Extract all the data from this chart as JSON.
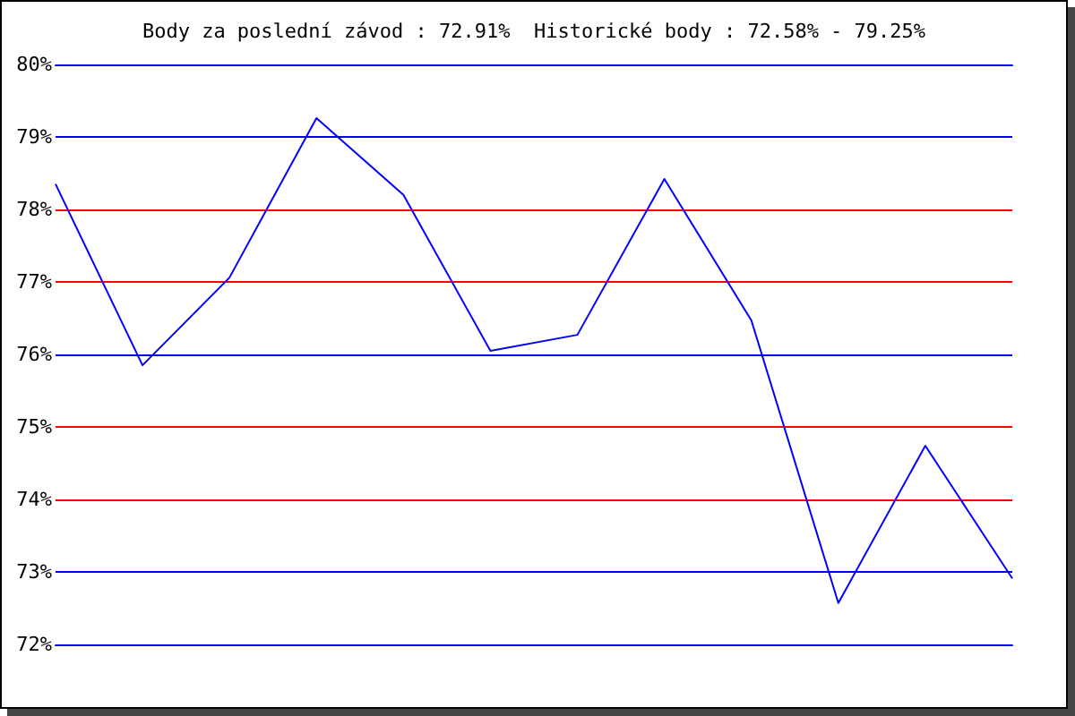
{
  "chart_data": {
    "type": "line",
    "title": "Body za poslední závod : 72.91%  Historické body : 72.58% - 79.25%",
    "categories": [
      null,
      null,
      null,
      null,
      null,
      null,
      null,
      null,
      null,
      null,
      null,
      null
    ],
    "series": [
      {
        "color": "#0000ff",
        "values": [
          78.35,
          75.85,
          77.06,
          79.26,
          78.2,
          76.05,
          76.27,
          78.42,
          76.47,
          72.57,
          74.74,
          72.91
        ]
      }
    ],
    "ylim": [
      72,
      80
    ],
    "yticks": [
      {
        "value": 72,
        "label": "72%"
      },
      {
        "value": 73,
        "label": "73%"
      },
      {
        "value": 74,
        "label": "74%"
      },
      {
        "value": 75,
        "label": "75%"
      },
      {
        "value": 76,
        "label": "76%"
      },
      {
        "value": 77,
        "label": "77%"
      },
      {
        "value": 78,
        "label": "78%"
      },
      {
        "value": 79,
        "label": "79%"
      },
      {
        "value": 80,
        "label": "80%"
      }
    ],
    "marker": "none",
    "line_style": "solid",
    "ref_lines": [
      {
        "axis": "y",
        "value": 73,
        "color": "#0000ff"
      },
      {
        "axis": "y",
        "value": 74,
        "color": "#ff0000"
      },
      {
        "axis": "y",
        "value": 75,
        "color": "#ff0000"
      },
      {
        "axis": "y",
        "value": 76,
        "color": "#0000ff"
      },
      {
        "axis": "y",
        "value": 77,
        "color": "#ff0000"
      },
      {
        "axis": "y",
        "value": 78,
        "color": "#ff0000"
      },
      {
        "axis": "y",
        "value": 79,
        "color": "#0000ff"
      }
    ]
  }
}
